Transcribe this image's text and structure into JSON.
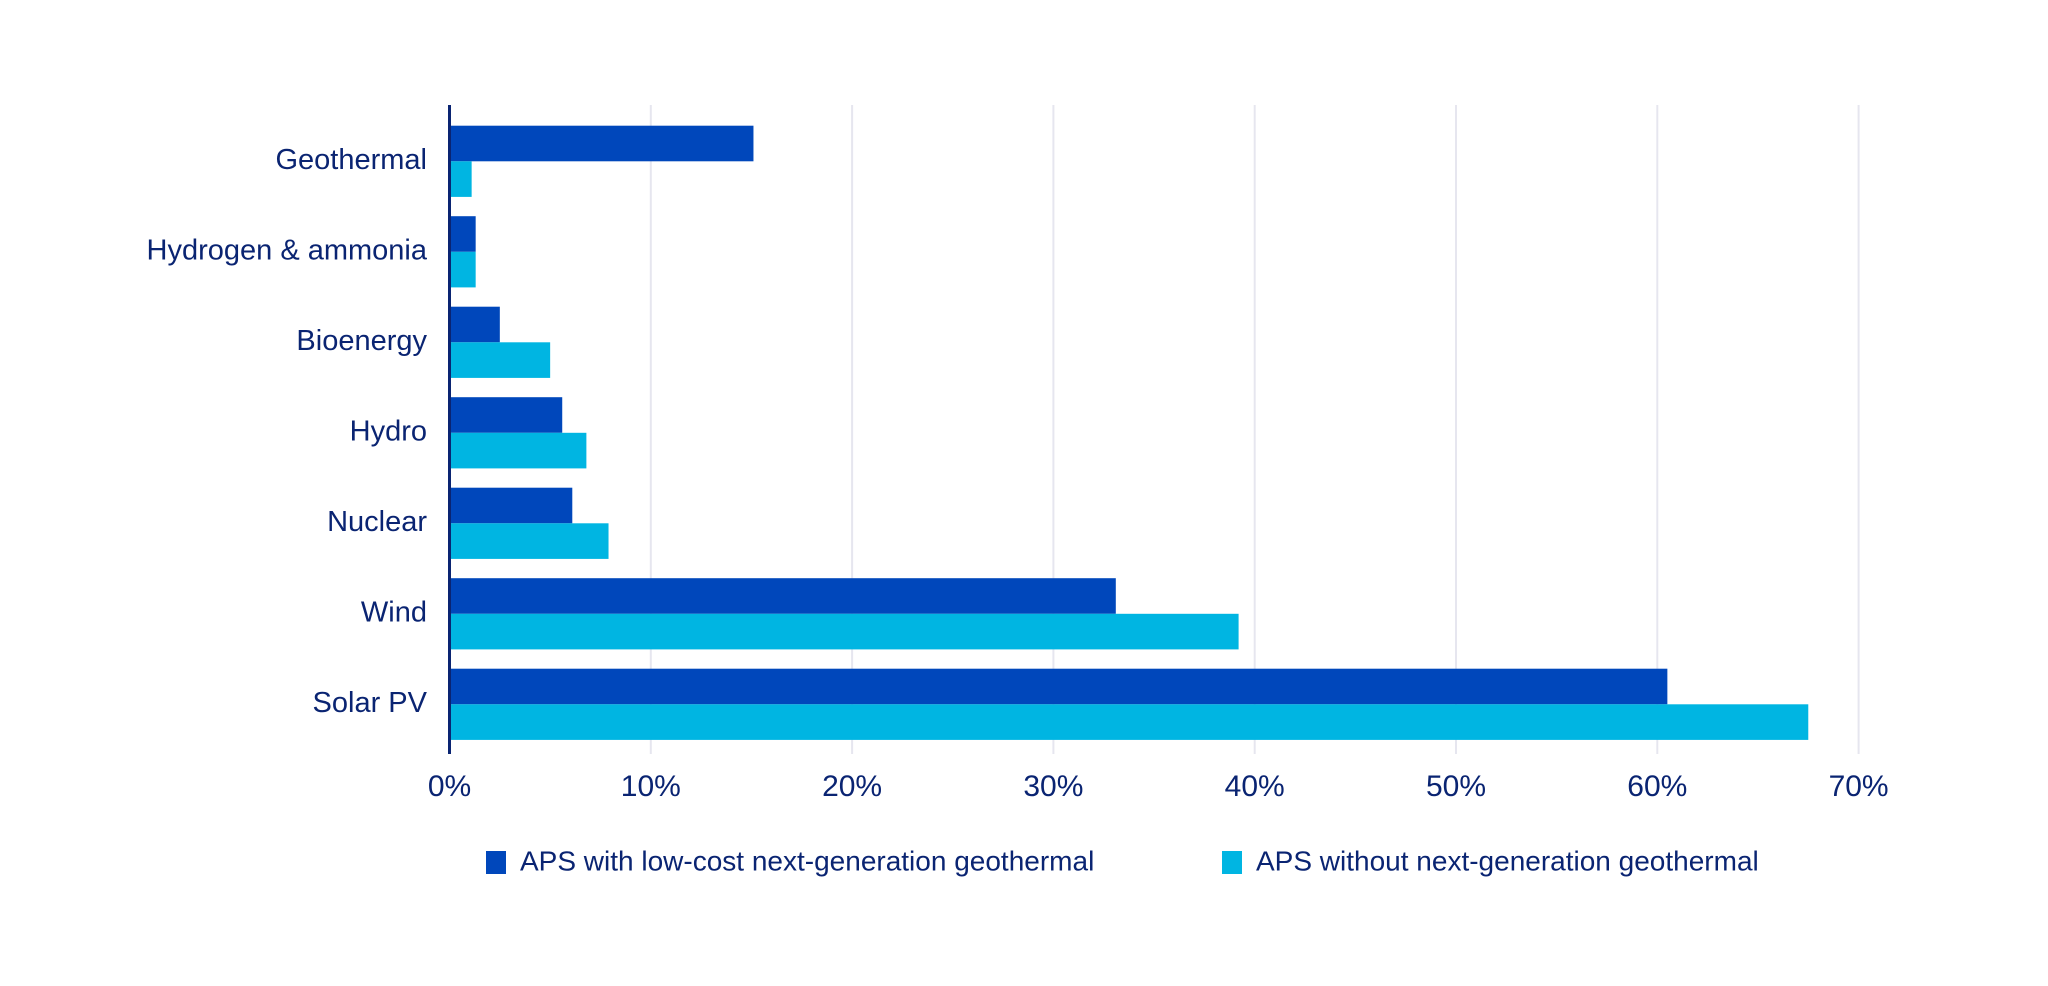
{
  "chart_data": {
    "type": "bar",
    "orientation": "horizontal",
    "title": "",
    "xlabel": "",
    "ylabel": "",
    "categories": [
      "Geothermal",
      "Hydrogen & ammonia",
      "Bioenergy",
      "Hydro",
      "Nuclear",
      "Wind",
      "Solar PV"
    ],
    "series": [
      {
        "name": "APS with low-cost next-generation geothermal",
        "color": "#0047bb",
        "values": [
          15.1,
          1.3,
          2.5,
          5.6,
          6.1,
          33.1,
          60.5
        ]
      },
      {
        "name": "APS without next-generation geothermal",
        "color": "#00b5e2",
        "values": [
          1.1,
          1.3,
          5.0,
          6.8,
          7.9,
          39.2,
          67.5
        ]
      }
    ],
    "xlim": [
      0,
      70
    ],
    "x_ticks": [
      0,
      10,
      20,
      30,
      40,
      50,
      60,
      70
    ],
    "x_tick_labels": [
      "0%",
      "10%",
      "20%",
      "30%",
      "40%",
      "50%",
      "60%",
      "70%"
    ],
    "grid": "vertical",
    "legend_placement": "bottom",
    "axis_color": "#0a2472",
    "grid_color": "#e6e6ef"
  }
}
